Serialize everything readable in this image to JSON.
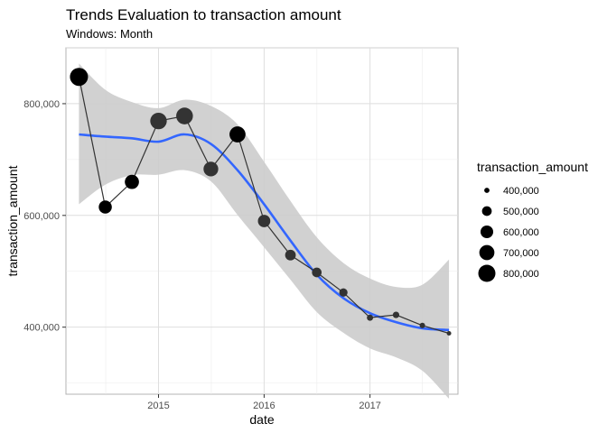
{
  "chart_data": {
    "type": "scatter",
    "title": "Trends Evaluation to transaction amount",
    "subtitle": "Windows: Month",
    "xlabel": "date",
    "ylabel": "transaction_amount",
    "xlim": [
      "2014-02-15",
      "2017-11-01"
    ],
    "ylim": [
      280000,
      900000
    ],
    "x_ticks": [
      {
        "value": "2015-01-01",
        "label": "2015"
      },
      {
        "value": "2016-01-01",
        "label": "2016"
      },
      {
        "value": "2017-01-01",
        "label": "2017"
      }
    ],
    "y_ticks": [
      {
        "value": 400000,
        "label": "400,000"
      },
      {
        "value": 600000,
        "label": "600,000"
      },
      {
        "value": 800000,
        "label": "800,000"
      }
    ],
    "grid": true,
    "series": [
      {
        "kind": "line-with-points",
        "points": [
          {
            "x": "2014-04-01",
            "y": 848000
          },
          {
            "x": "2014-07-01",
            "y": 615000
          },
          {
            "x": "2014-10-01",
            "y": 660000
          },
          {
            "x": "2015-01-01",
            "y": 769000
          },
          {
            "x": "2015-04-01",
            "y": 778000
          },
          {
            "x": "2015-07-01",
            "y": 683000
          },
          {
            "x": "2015-10-01",
            "y": 745000
          },
          {
            "x": "2016-01-01",
            "y": 590000
          },
          {
            "x": "2016-04-01",
            "y": 529000
          },
          {
            "x": "2016-07-01",
            "y": 498000
          },
          {
            "x": "2016-10-01",
            "y": 462000
          },
          {
            "x": "2017-01-01",
            "y": 417000
          },
          {
            "x": "2017-04-01",
            "y": 422000
          },
          {
            "x": "2017-07-01",
            "y": 403000
          },
          {
            "x": "2017-10-01",
            "y": 389000
          }
        ]
      },
      {
        "kind": "smooth",
        "color": "#3366ff",
        "band_color": "#cccccc",
        "points": [
          {
            "x": "2014-04-01",
            "y": 745000,
            "lo": 620000,
            "hi": 872000
          },
          {
            "x": "2014-07-01",
            "y": 741000,
            "lo": 655000,
            "hi": 825000
          },
          {
            "x": "2014-10-01",
            "y": 738000,
            "lo": 672000,
            "hi": 803000
          },
          {
            "x": "2015-01-01",
            "y": 732000,
            "lo": 673000,
            "hi": 792000
          },
          {
            "x": "2015-04-01",
            "y": 745000,
            "lo": 681000,
            "hi": 807000
          },
          {
            "x": "2015-07-01",
            "y": 728000,
            "lo": 661000,
            "hi": 796000
          },
          {
            "x": "2015-10-01",
            "y": 681000,
            "lo": 601000,
            "hi": 763000
          },
          {
            "x": "2016-01-01",
            "y": 620000,
            "lo": 543000,
            "hi": 696000
          },
          {
            "x": "2016-04-01",
            "y": 555000,
            "lo": 485000,
            "hi": 626000
          },
          {
            "x": "2016-07-01",
            "y": 494000,
            "lo": 427000,
            "hi": 561000
          },
          {
            "x": "2016-10-01",
            "y": 452000,
            "lo": 390000,
            "hi": 515000
          },
          {
            "x": "2017-01-01",
            "y": 425000,
            "lo": 362000,
            "hi": 487000
          },
          {
            "x": "2017-04-01",
            "y": 409000,
            "lo": 346000,
            "hi": 472000
          },
          {
            "x": "2017-07-01",
            "y": 398000,
            "lo": 322000,
            "hi": 476000
          },
          {
            "x": "2017-10-01",
            "y": 395000,
            "lo": 272000,
            "hi": 521000
          }
        ]
      }
    ],
    "size_scale": {
      "min_value": 389000,
      "max_value": 848000,
      "min_radius": 2.5,
      "max_radius": 10
    },
    "point_color_dark": "#000000",
    "point_color_mid": "#333333",
    "legend": {
      "title": "transaction_amount",
      "position": "right",
      "entries": [
        {
          "label": "400,000",
          "value": 400000
        },
        {
          "label": "500,000",
          "value": 500000
        },
        {
          "label": "600,000",
          "value": 600000
        },
        {
          "label": "700,000",
          "value": 700000
        },
        {
          "label": "800,000",
          "value": 800000
        }
      ]
    }
  }
}
